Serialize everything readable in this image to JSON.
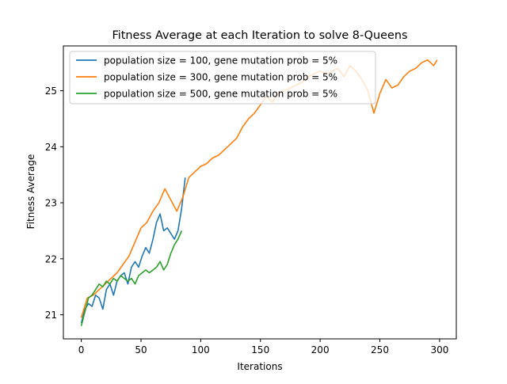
{
  "chart_data": {
    "type": "line",
    "title": "Fitness Average at each Iteration to solve 8-Queens",
    "xlabel": "Iterations",
    "ylabel": "Fitness Average",
    "xlim": [
      -15,
      314
    ],
    "ylim": [
      20.57,
      25.8
    ],
    "xticks": [
      0,
      50,
      100,
      150,
      200,
      250,
      300
    ],
    "yticks": [
      21,
      22,
      23,
      24,
      25
    ],
    "grid": false,
    "legend_position": "top-left",
    "series": [
      {
        "name": "population size = 100, gene mutation prob = 5%",
        "color": "#1f77b4",
        "x": [
          0,
          3,
          6,
          9,
          12,
          15,
          18,
          21,
          24,
          27,
          30,
          33,
          36,
          39,
          42,
          45,
          48,
          51,
          54,
          57,
          60,
          63,
          66,
          69,
          72,
          75,
          78,
          81,
          84,
          87
        ],
        "y": [
          20.85,
          21.1,
          21.2,
          21.15,
          21.35,
          21.3,
          21.1,
          21.45,
          21.55,
          21.35,
          21.6,
          21.7,
          21.75,
          21.55,
          21.85,
          21.95,
          21.85,
          22.05,
          22.2,
          22.1,
          22.35,
          22.65,
          22.8,
          22.5,
          22.55,
          22.45,
          22.35,
          22.5,
          22.9,
          23.45
        ]
      },
      {
        "name": "population size = 300, gene mutation prob = 5%",
        "color": "#ff7f0e",
        "x": [
          0,
          5,
          10,
          15,
          20,
          25,
          30,
          35,
          40,
          45,
          50,
          55,
          60,
          65,
          70,
          75,
          80,
          85,
          90,
          95,
          100,
          105,
          110,
          115,
          120,
          125,
          130,
          135,
          140,
          145,
          150,
          155,
          160,
          165,
          170,
          175,
          180,
          185,
          190,
          195,
          200,
          205,
          210,
          215,
          220,
          225,
          230,
          235,
          240,
          245,
          250,
          255,
          260,
          265,
          270,
          275,
          280,
          285,
          290,
          295,
          298
        ],
        "y": [
          20.95,
          21.3,
          21.35,
          21.45,
          21.55,
          21.65,
          21.75,
          21.9,
          22.05,
          22.3,
          22.55,
          22.65,
          22.85,
          23.0,
          23.25,
          23.05,
          22.85,
          23.1,
          23.45,
          23.55,
          23.65,
          23.7,
          23.8,
          23.85,
          23.95,
          24.05,
          24.15,
          24.35,
          24.5,
          24.6,
          24.75,
          24.9,
          24.8,
          24.95,
          25.0,
          25.05,
          25.1,
          25.15,
          25.25,
          25.3,
          25.35,
          25.3,
          25.35,
          25.4,
          25.25,
          25.45,
          25.35,
          25.2,
          25.0,
          24.6,
          24.95,
          25.2,
          25.05,
          25.1,
          25.25,
          25.35,
          25.4,
          25.5,
          25.55,
          25.45,
          25.55
        ]
      },
      {
        "name": "population size = 500, gene mutation prob = 5%",
        "color": "#2ca02c",
        "x": [
          0,
          3,
          6,
          9,
          12,
          15,
          18,
          21,
          24,
          27,
          30,
          33,
          36,
          39,
          42,
          45,
          48,
          51,
          54,
          57,
          60,
          63,
          66,
          69,
          72,
          75,
          78,
          81,
          84
        ],
        "y": [
          20.8,
          21.05,
          21.3,
          21.35,
          21.45,
          21.55,
          21.5,
          21.6,
          21.55,
          21.65,
          21.6,
          21.7,
          21.65,
          21.6,
          21.65,
          21.55,
          21.7,
          21.75,
          21.8,
          21.75,
          21.8,
          21.85,
          21.95,
          21.8,
          21.9,
          22.1,
          22.25,
          22.35,
          22.5
        ]
      }
    ]
  }
}
